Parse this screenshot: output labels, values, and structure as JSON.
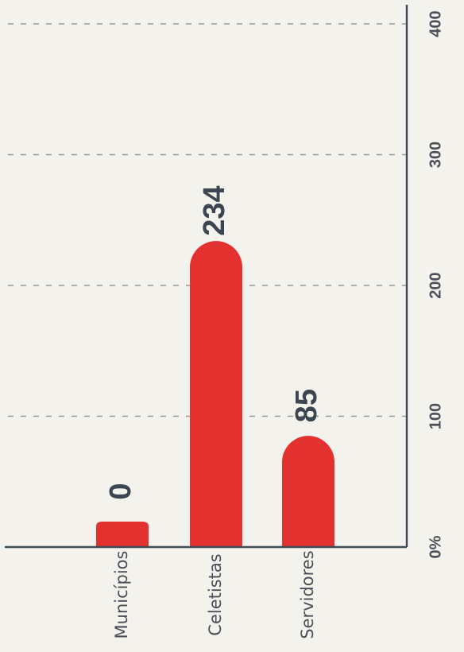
{
  "chart_data": {
    "type": "bar",
    "orientation": "horizontal",
    "categories": [
      "Municípios",
      "Celetistas",
      "Servidores"
    ],
    "values": [
      0,
      234,
      85
    ],
    "value_labels": [
      "0",
      "234",
      "85"
    ],
    "xlim": [
      0,
      400
    ],
    "x_ticks": [
      0,
      100,
      200,
      300,
      400
    ],
    "x_tick_labels": [
      "0%",
      "100",
      "200",
      "300",
      "400"
    ],
    "grid": true,
    "legend": "none",
    "title": "",
    "xlabel": "",
    "ylabel": "",
    "bar_color": "#e3312f"
  }
}
